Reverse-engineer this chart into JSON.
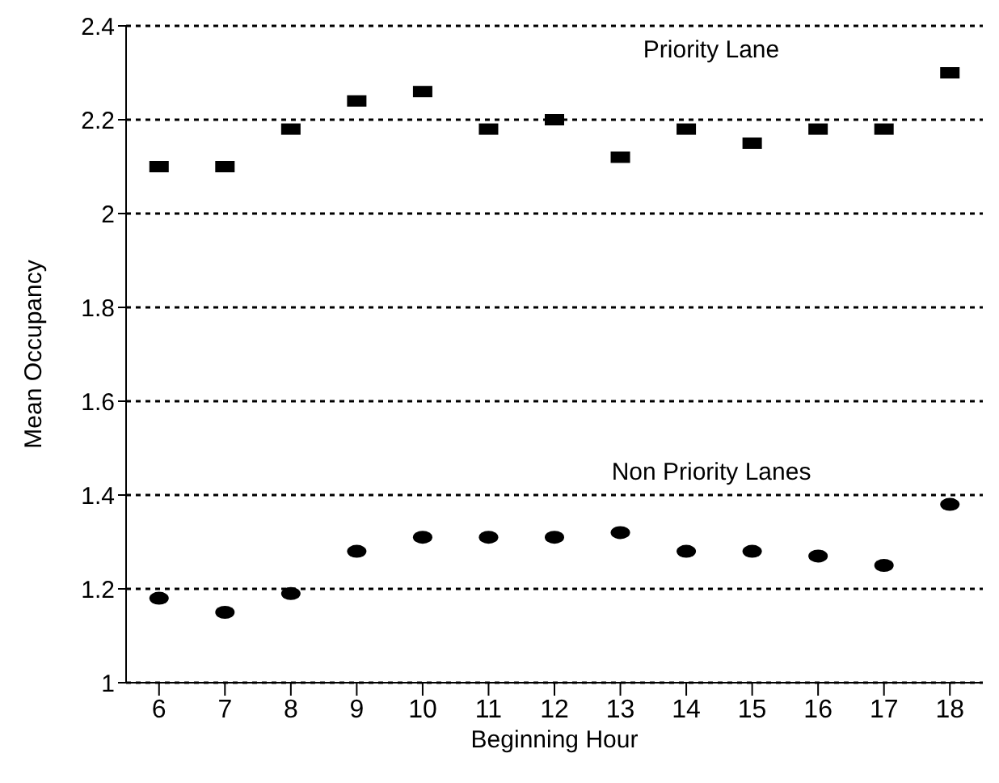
{
  "chart_data": {
    "type": "scatter",
    "xlabel": "Beginning Hour",
    "ylabel": "Mean Occupancy",
    "categories": [
      "6",
      "7",
      "8",
      "9",
      "10",
      "11",
      "12",
      "13",
      "14",
      "15",
      "16",
      "17",
      "18"
    ],
    "series": [
      {
        "name": "Priority Lane",
        "color": "#000000",
        "marker": "square",
        "values": [
          2.1,
          2.1,
          2.18,
          2.24,
          2.26,
          2.18,
          2.2,
          2.12,
          2.18,
          2.15,
          2.18,
          2.18,
          2.3
        ]
      },
      {
        "name": "Non Priority Lanes",
        "color": "#000000",
        "marker": "circle",
        "values": [
          1.18,
          1.15,
          1.19,
          1.28,
          1.31,
          1.31,
          1.31,
          1.32,
          1.28,
          1.28,
          1.27,
          1.25,
          1.38
        ]
      }
    ],
    "ylim": [
      1,
      2.4
    ],
    "yticks": [
      1,
      1.2,
      1.4,
      1.6,
      1.8,
      2,
      2.2,
      2.4
    ],
    "grid": "y",
    "line_style": "dotted",
    "legend": false
  }
}
